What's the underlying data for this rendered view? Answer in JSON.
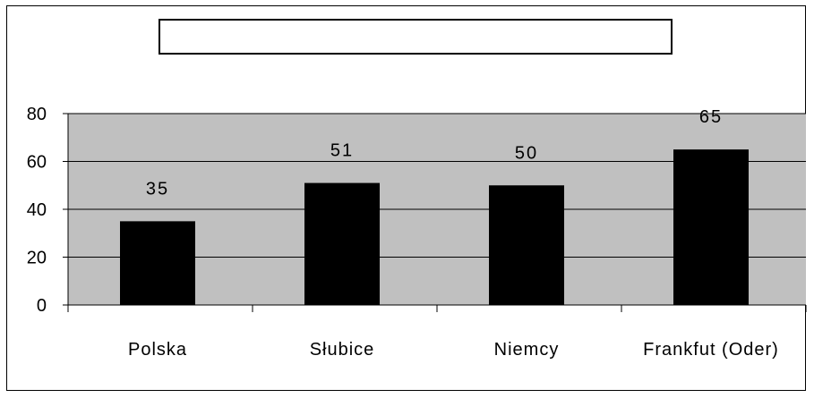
{
  "chart_data": {
    "type": "bar",
    "title": "",
    "categories": [
      "Polska",
      "Słubice",
      "Niemcy",
      "Frankfut (Oder)"
    ],
    "values": [
      35,
      51,
      50,
      65
    ],
    "data_labels": [
      "35",
      "51",
      "50",
      "65"
    ],
    "ylim": [
      0,
      80
    ],
    "yticks": [
      "0",
      "20",
      "40",
      "60",
      "80"
    ],
    "ytick_values": [
      0,
      20,
      40,
      60,
      80
    ],
    "grid": true,
    "legend": "none",
    "colors": {
      "bar": "#000000",
      "plot_background": "#c0c0c0",
      "gridline": "#000000"
    }
  }
}
